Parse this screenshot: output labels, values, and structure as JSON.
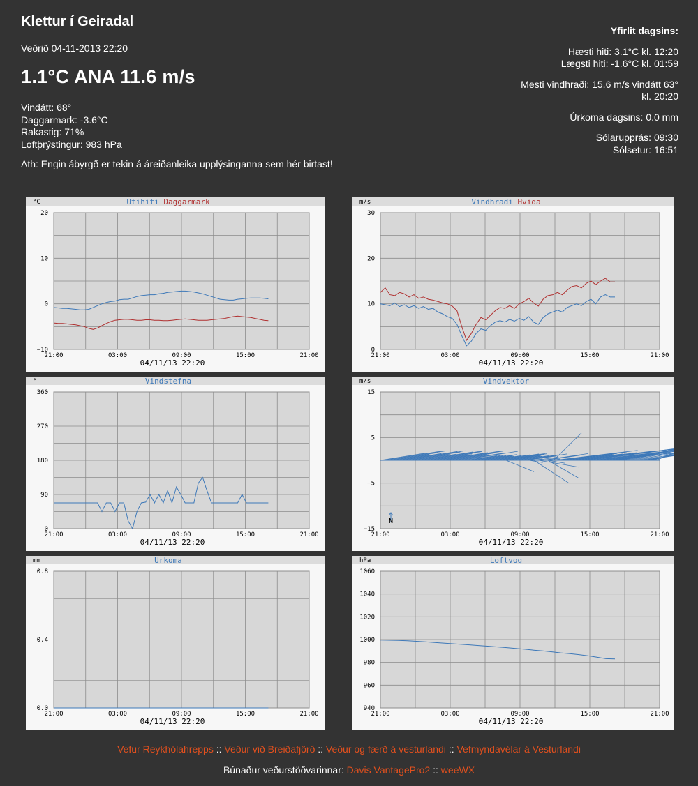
{
  "header": {
    "station": "Klettur í Geiradal",
    "obs_time": "Veðrið 04-11-2013 22:20",
    "current": "1.1°C ANA 11.6 m/s",
    "details": [
      "Vindátt: 68°",
      "Daggarmark: -3.6°C",
      "Rakastig: 71%",
      "Loftþrýstingur: 983 hPa"
    ],
    "disclaimer": "Ath: Engin ábyrgð er tekin á áreiðanleika upplýsinganna sem hér birtast!"
  },
  "summary": {
    "title": "Yfirlit dagsins:",
    "high": "Hæsti hiti: 3.1°C kl. 12:20",
    "low": "Lægsti hiti: -1.6°C kl. 01:59",
    "max_wind_line1": "Mesti vindhraði: 15.6 m/s vindátt 63°",
    "max_wind_line2": "kl. 20:20",
    "rain": "Úrkoma dagsins: 0.0 mm",
    "sunrise": "Sólarupprás: 09:30",
    "sunset": "Sólsetur: 16:51"
  },
  "colors": {
    "blue": "#3d78b8",
    "red": "#b03030",
    "link": "#e2501e",
    "bg": "#333333"
  },
  "footer": {
    "links": [
      "Vefur Reykhólahrepps",
      "Veður við Breiðafjörð",
      "Veður og færð á vesturlandi",
      "Vefmyndavélar á Vesturlandi"
    ],
    "separator": "::",
    "equipment_label": "Búnaður veðurstöðvarinnar:",
    "equipment_links": [
      "Davis VantagePro2",
      "weeWX"
    ]
  },
  "chart_data": [
    {
      "id": "temp",
      "type": "line",
      "unit": "°C",
      "xlabel": "04/11/13 22:20",
      "x_ticks": [
        "21:00",
        "03:00",
        "09:00",
        "15:00",
        "21:00"
      ],
      "y_ticks": [
        "20",
        "10",
        "0",
        "−10"
      ],
      "ylim": [
        -10,
        20
      ],
      "series": [
        {
          "name": "Utihiti",
          "color": "#3d78b8",
          "values": [
            -0.8,
            -0.9,
            -1.0,
            -1.0,
            -1.1,
            -1.2,
            -1.3,
            -1.3,
            -1.2,
            -0.8,
            -0.4,
            0.0,
            0.3,
            0.5,
            0.6,
            0.9,
            1.0,
            1.0,
            1.3,
            1.6,
            1.8,
            1.9,
            2.0,
            2.0,
            2.2,
            2.3,
            2.5,
            2.6,
            2.7,
            2.8,
            2.8,
            2.7,
            2.6,
            2.4,
            2.2,
            1.9,
            1.6,
            1.3,
            1.0,
            0.9,
            0.8,
            0.8,
            1.0,
            1.1,
            1.2,
            1.3,
            1.3,
            1.3,
            1.2,
            1.1
          ]
        },
        {
          "name": "Daggarmark",
          "color": "#b03030",
          "values": [
            -4.2,
            -4.3,
            -4.3,
            -4.4,
            -4.5,
            -4.6,
            -4.8,
            -5.0,
            -5.4,
            -5.6,
            -5.3,
            -4.8,
            -4.3,
            -3.9,
            -3.6,
            -3.5,
            -3.4,
            -3.4,
            -3.5,
            -3.6,
            -3.6,
            -3.5,
            -3.5,
            -3.6,
            -3.6,
            -3.7,
            -3.7,
            -3.6,
            -3.5,
            -3.4,
            -3.3,
            -3.4,
            -3.5,
            -3.6,
            -3.6,
            -3.6,
            -3.5,
            -3.4,
            -3.3,
            -3.2,
            -3.0,
            -2.8,
            -2.7,
            -2.8,
            -2.9,
            -3.0,
            -3.2,
            -3.4,
            -3.6,
            -3.7
          ]
        }
      ]
    },
    {
      "id": "wind",
      "type": "line",
      "unit": "m/s",
      "xlabel": "04/11/13 22:20",
      "x_ticks": [
        "21:00",
        "03:00",
        "09:00",
        "15:00",
        "21:00"
      ],
      "y_ticks": [
        "30",
        "20",
        "10",
        "0"
      ],
      "ylim": [
        0,
        30
      ],
      "series": [
        {
          "name": "Vindhradi",
          "color": "#3d78b8",
          "values": [
            10.0,
            9.8,
            9.6,
            10.2,
            9.4,
            9.8,
            9.2,
            9.6,
            9.0,
            9.4,
            8.8,
            9.0,
            8.2,
            7.8,
            7.2,
            6.8,
            5.5,
            3.0,
            0.8,
            1.8,
            3.5,
            4.5,
            4.2,
            5.2,
            6.0,
            6.3,
            6.0,
            6.6,
            6.2,
            6.8,
            6.4,
            7.2,
            6.0,
            5.5,
            7.0,
            7.8,
            8.2,
            8.6,
            8.2,
            9.2,
            9.6,
            10.0,
            9.6,
            10.5,
            11.0,
            10.0,
            11.5,
            12.0,
            11.5,
            11.5
          ]
        },
        {
          "name": "Hvida",
          "color": "#b03030",
          "values": [
            12.5,
            13.5,
            12.0,
            11.8,
            12.5,
            12.2,
            11.5,
            12.0,
            11.2,
            11.5,
            11.0,
            10.8,
            10.5,
            10.2,
            10.0,
            9.5,
            8.5,
            5.0,
            2.0,
            3.5,
            5.5,
            7.0,
            6.5,
            7.5,
            8.5,
            9.2,
            9.0,
            9.6,
            9.0,
            10.0,
            10.5,
            11.2,
            10.2,
            9.5,
            11.0,
            11.8,
            12.0,
            12.5,
            12.0,
            13.0,
            13.8,
            14.0,
            13.5,
            14.5,
            15.0,
            14.2,
            15.0,
            15.6,
            14.8,
            14.8
          ]
        }
      ]
    },
    {
      "id": "winddir",
      "type": "line",
      "unit": "°",
      "xlabel": "04/11/13 22:20",
      "x_ticks": [
        "21:00",
        "03:00",
        "09:00",
        "15:00",
        "21:00"
      ],
      "y_ticks": [
        "360",
        "270",
        "180",
        "90",
        "0"
      ],
      "ylim": [
        0,
        360
      ],
      "series": [
        {
          "name": "Vindstefna",
          "color": "#3d78b8",
          "values": [
            68,
            68,
            68,
            68,
            68,
            68,
            68,
            68,
            68,
            68,
            68,
            45,
            68,
            68,
            45,
            68,
            68,
            20,
            0,
            45,
            68,
            70,
            90,
            68,
            90,
            68,
            100,
            68,
            110,
            90,
            68,
            68,
            68,
            120,
            135,
            100,
            68,
            68,
            68,
            68,
            68,
            68,
            68,
            90,
            68,
            68,
            68,
            68,
            68,
            68
          ]
        }
      ]
    },
    {
      "id": "vector",
      "type": "line",
      "unit": "m/s",
      "xlabel": "04/11/13 22:20",
      "x_ticks": [
        "21:00",
        "03:00",
        "09:00",
        "15:00",
        "21:00"
      ],
      "y_ticks": [
        "15",
        "5",
        "−5",
        "−15"
      ],
      "ylim": [
        -15,
        15
      ],
      "compass_label": "N",
      "series": [
        {
          "name": "Vindvektor",
          "color": "#3d78b8",
          "values": []
        }
      ]
    },
    {
      "id": "rain",
      "type": "line",
      "unit": "mm",
      "xlabel": "04/11/13 22:20",
      "x_ticks": [
        "21:00",
        "03:00",
        "09:00",
        "15:00",
        "21:00"
      ],
      "y_ticks": [
        "0.8",
        "0.4",
        "0.0"
      ],
      "ylim": [
        0,
        1.0
      ],
      "series": [
        {
          "name": "Urkoma",
          "color": "#3d78b8",
          "values": [
            0,
            0,
            0,
            0,
            0,
            0,
            0,
            0,
            0,
            0
          ]
        }
      ]
    },
    {
      "id": "pressure",
      "type": "line",
      "unit": "hPa",
      "xlabel": "04/11/13 22:20",
      "x_ticks": [
        "21:00",
        "03:00",
        "09:00",
        "15:00",
        "21:00"
      ],
      "y_ticks": [
        "1060",
        "1040",
        "1020",
        "1000",
        "980",
        "960",
        "940"
      ],
      "ylim": [
        940,
        1060
      ],
      "series": [
        {
          "name": "Loftvog",
          "color": "#3d78b8",
          "values": [
            999.5,
            999.4,
            999.2,
            998.9,
            998.5,
            998.0,
            997.4,
            996.9,
            996.3,
            995.8,
            995.3,
            994.7,
            994.1,
            993.5,
            992.9,
            992.2,
            991.5,
            990.7,
            990.0,
            989.2,
            988.3,
            987.6,
            986.8,
            985.8,
            984.6,
            983.2,
            983.0
          ]
        }
      ]
    }
  ]
}
